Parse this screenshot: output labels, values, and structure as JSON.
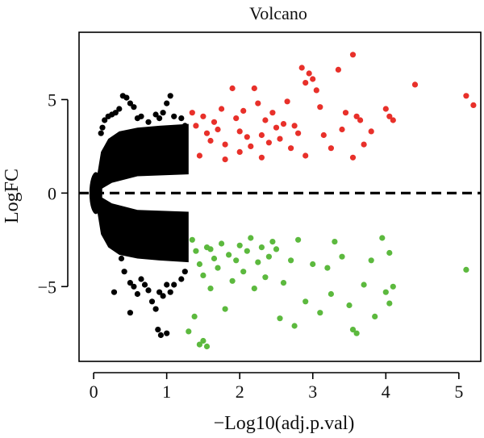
{
  "chart_data": {
    "type": "scatter",
    "title": "Volcano",
    "xlabel": "−Log10(adj.p.val)",
    "ylabel": "LogFC",
    "xlim": [
      -0.2,
      5.3
    ],
    "ylim": [
      -9,
      8.6
    ],
    "x_ticks": [
      0,
      1,
      2,
      3,
      4,
      5
    ],
    "x_tick_labels": [
      "0",
      "1",
      "2",
      "3",
      "4",
      "5"
    ],
    "y_ticks": [
      -5,
      0,
      5
    ],
    "y_tick_labels": [
      "−5",
      "0",
      "5"
    ],
    "significance_threshold_x": 1.3,
    "reference_line": {
      "y": 0,
      "style": "dashed",
      "color": "#000000"
    },
    "colors": {
      "not_significant": "#000000",
      "up": "#e8302a",
      "down": "#5cb93e"
    },
    "series": [
      {
        "key": "not_significant",
        "color": "#000000",
        "points": [
          [
            0.1,
            3.2
          ],
          [
            0.12,
            3.5
          ],
          [
            0.15,
            3.9
          ],
          [
            0.2,
            4.1
          ],
          [
            0.25,
            4.2
          ],
          [
            0.3,
            4.3
          ],
          [
            0.35,
            4.5
          ],
          [
            0.4,
            5.2
          ],
          [
            0.45,
            5.1
          ],
          [
            0.5,
            4.8
          ],
          [
            0.55,
            4.6
          ],
          [
            0.6,
            4.0
          ],
          [
            0.65,
            4.1
          ],
          [
            0.75,
            3.8
          ],
          [
            0.85,
            4.2
          ],
          [
            0.9,
            4.0
          ],
          [
            0.95,
            4.3
          ],
          [
            1.0,
            4.8
          ],
          [
            1.05,
            5.2
          ],
          [
            1.1,
            4.1
          ],
          [
            1.2,
            4.0
          ],
          [
            1.25,
            3.6
          ],
          [
            0.38,
            -3.5
          ],
          [
            0.42,
            -4.2
          ],
          [
            0.5,
            -4.8
          ],
          [
            0.55,
            -5.0
          ],
          [
            0.6,
            -5.4
          ],
          [
            0.65,
            -4.6
          ],
          [
            0.7,
            -4.9
          ],
          [
            0.75,
            -5.2
          ],
          [
            0.8,
            -5.8
          ],
          [
            0.85,
            -6.2
          ],
          [
            0.9,
            -5.3
          ],
          [
            0.95,
            -5.5
          ],
          [
            1.0,
            -4.9
          ],
          [
            1.05,
            -5.3
          ],
          [
            1.1,
            -4.9
          ],
          [
            1.2,
            -4.6
          ],
          [
            1.25,
            -4.2
          ],
          [
            0.28,
            -5.3
          ],
          [
            0.5,
            -6.4
          ],
          [
            0.88,
            -7.3
          ],
          [
            0.92,
            -7.6
          ],
          [
            1.0,
            -7.5
          ]
        ]
      },
      {
        "key": "up",
        "color": "#e8302a",
        "points": [
          [
            1.35,
            4.3
          ],
          [
            1.4,
            3.6
          ],
          [
            1.5,
            4.1
          ],
          [
            1.55,
            3.2
          ],
          [
            1.6,
            2.8
          ],
          [
            1.65,
            3.8
          ],
          [
            1.7,
            3.4
          ],
          [
            1.75,
            4.5
          ],
          [
            1.8,
            2.6
          ],
          [
            1.9,
            5.6
          ],
          [
            1.95,
            4.0
          ],
          [
            2.0,
            3.3
          ],
          [
            2.05,
            4.4
          ],
          [
            2.1,
            3.0
          ],
          [
            2.15,
            2.5
          ],
          [
            2.2,
            5.6
          ],
          [
            2.25,
            4.8
          ],
          [
            2.3,
            3.1
          ],
          [
            2.35,
            3.9
          ],
          [
            2.4,
            2.7
          ],
          [
            2.45,
            4.3
          ],
          [
            2.5,
            3.5
          ],
          [
            2.55,
            2.9
          ],
          [
            2.6,
            3.7
          ],
          [
            2.65,
            4.9
          ],
          [
            2.7,
            2.4
          ],
          [
            2.75,
            3.6
          ],
          [
            2.8,
            3.2
          ],
          [
            2.85,
            6.7
          ],
          [
            2.9,
            5.9
          ],
          [
            2.95,
            6.4
          ],
          [
            3.0,
            6.1
          ],
          [
            3.05,
            5.5
          ],
          [
            3.1,
            4.6
          ],
          [
            3.15,
            3.1
          ],
          [
            3.25,
            2.4
          ],
          [
            3.35,
            6.6
          ],
          [
            3.45,
            4.3
          ],
          [
            3.55,
            7.4
          ],
          [
            3.6,
            4.1
          ],
          [
            3.65,
            3.9
          ],
          [
            3.7,
            2.6
          ],
          [
            3.8,
            3.3
          ],
          [
            4.0,
            4.5
          ],
          [
            4.05,
            4.1
          ],
          [
            4.1,
            3.9
          ],
          [
            4.4,
            5.8
          ],
          [
            5.1,
            5.2
          ],
          [
            5.2,
            4.7
          ],
          [
            3.55,
            1.9
          ],
          [
            2.9,
            2.0
          ],
          [
            3.4,
            3.4
          ],
          [
            2.0,
            2.2
          ],
          [
            1.45,
            2.0
          ],
          [
            1.8,
            1.8
          ],
          [
            2.3,
            1.9
          ]
        ]
      },
      {
        "key": "down",
        "color": "#5cb93e",
        "points": [
          [
            1.35,
            -2.5
          ],
          [
            1.4,
            -3.1
          ],
          [
            1.45,
            -3.8
          ],
          [
            1.5,
            -4.4
          ],
          [
            1.55,
            -2.9
          ],
          [
            1.6,
            -5.1
          ],
          [
            1.65,
            -3.5
          ],
          [
            1.7,
            -4.0
          ],
          [
            1.75,
            -2.7
          ],
          [
            1.8,
            -6.2
          ],
          [
            1.85,
            -3.3
          ],
          [
            1.9,
            -4.7
          ],
          [
            1.95,
            -3.6
          ],
          [
            2.0,
            -2.8
          ],
          [
            2.05,
            -4.2
          ],
          [
            2.1,
            -3.1
          ],
          [
            2.2,
            -5.1
          ],
          [
            2.25,
            -3.7
          ],
          [
            2.3,
            -2.9
          ],
          [
            2.35,
            -4.5
          ],
          [
            2.4,
            -3.4
          ],
          [
            2.5,
            -3.0
          ],
          [
            2.55,
            -6.7
          ],
          [
            2.6,
            -4.8
          ],
          [
            2.7,
            -3.6
          ],
          [
            2.75,
            -7.1
          ],
          [
            2.8,
            -2.5
          ],
          [
            2.9,
            -5.8
          ],
          [
            3.0,
            -3.8
          ],
          [
            3.1,
            -6.4
          ],
          [
            3.2,
            -4.0
          ],
          [
            3.25,
            -5.4
          ],
          [
            3.3,
            -2.6
          ],
          [
            3.4,
            -3.4
          ],
          [
            3.5,
            -6.0
          ],
          [
            3.55,
            -7.3
          ],
          [
            3.6,
            -7.5
          ],
          [
            3.7,
            -4.9
          ],
          [
            3.8,
            -3.6
          ],
          [
            3.85,
            -6.6
          ],
          [
            3.95,
            -2.4
          ],
          [
            4.0,
            -5.3
          ],
          [
            4.05,
            -5.9
          ],
          [
            4.1,
            -5.0
          ],
          [
            4.05,
            -3.2
          ],
          [
            5.1,
            -4.1
          ],
          [
            1.3,
            -7.4
          ],
          [
            1.45,
            -8.1
          ],
          [
            1.5,
            -7.9
          ],
          [
            1.55,
            -8.2
          ],
          [
            1.38,
            -6.6
          ],
          [
            1.6,
            -3.0
          ],
          [
            2.15,
            -2.4
          ],
          [
            2.45,
            -2.6
          ]
        ]
      }
    ]
  }
}
